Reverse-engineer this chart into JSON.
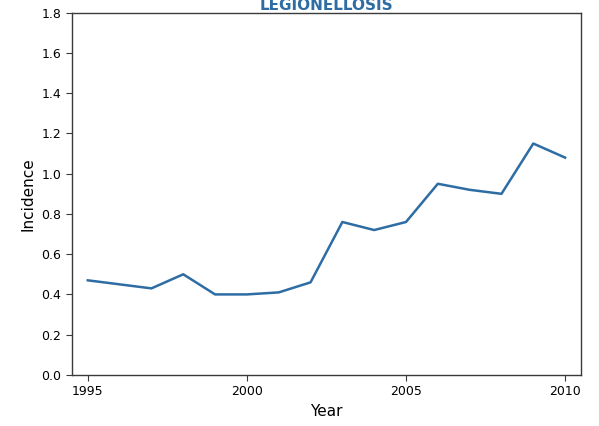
{
  "title": "LEGIONELLOSIS",
  "xlabel": "Year",
  "ylabel": "Incidence",
  "line_color": "#2E6DA4",
  "line_width": 1.8,
  "xlim": [
    1994.5,
    2010.5
  ],
  "ylim": [
    0.0,
    1.8
  ],
  "xticks": [
    1995,
    2000,
    2005,
    2010
  ],
  "yticks": [
    0.0,
    0.2,
    0.4,
    0.6,
    0.8,
    1.0,
    1.2,
    1.4,
    1.6,
    1.8
  ],
  "years": [
    1995,
    1996,
    1997,
    1998,
    1999,
    2000,
    2001,
    2002,
    2003,
    2004,
    2005,
    2006,
    2007,
    2008,
    2009,
    2010
  ],
  "values": [
    0.47,
    0.45,
    0.43,
    0.5,
    0.4,
    0.4,
    0.41,
    0.46,
    0.76,
    0.72,
    0.76,
    0.95,
    0.92,
    0.9,
    1.15,
    1.08
  ],
  "title_color": "#2E6DA4",
  "title_fontsize": 11,
  "spine_color": "#3A3A3A",
  "tick_labelsize": 9,
  "axis_labelsize": 11
}
